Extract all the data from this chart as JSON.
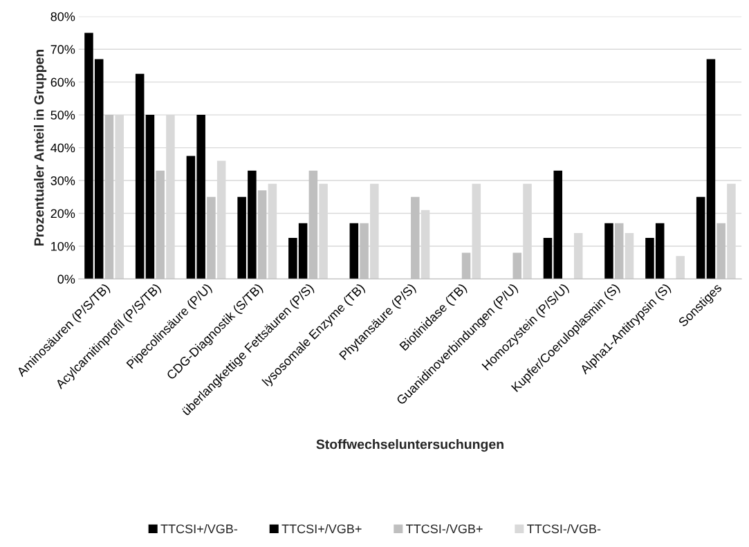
{
  "chart_data": {
    "type": "bar",
    "xlabel": "Stoffwechseluntersuchungen",
    "ylabel": "Prozentualer Anteil in Gruppen",
    "categories": [
      "Aminosäuren (P/S/TB)",
      "Acylcarnitinprofil (P/S/TB)",
      "Pipecolinsäure (P/U)",
      "CDG-Diagnostik (S/TB)",
      "überlangkettige Fettsäuren (P/S)",
      "lysosomale Enzyme (TB)",
      "Phytansäure (P/S)",
      "Biotinidase (TB)",
      "Guanidinoverbindungen (P/U)",
      "Homozystein (P/S/U)",
      "Kupfer/Coeruloplasmin (S)",
      "Alpha1-Antitrypsin (S)",
      "Sonstiges"
    ],
    "series": [
      {
        "name": "TTCSI+/VGB-",
        "color": "#000000",
        "values": [
          75,
          62.5,
          37.5,
          25,
          12.5,
          0,
          0,
          0,
          0,
          12.5,
          0,
          12.5,
          25
        ]
      },
      {
        "name": "TTCSI+/VGB+",
        "color": "#000000",
        "values": [
          67,
          50,
          50,
          33,
          17,
          17,
          0,
          0,
          0,
          33,
          17,
          17,
          67
        ]
      },
      {
        "name": "TTCSI-/VGB+",
        "color": "#bfbfbf",
        "values": [
          50,
          33,
          25,
          27,
          33,
          17,
          25,
          8,
          8,
          0,
          17,
          0,
          17
        ]
      },
      {
        "name": "TTCSI-/VGB-",
        "color": "#d9d9d9",
        "values": [
          50,
          50,
          36,
          29,
          29,
          29,
          21,
          29,
          29,
          14,
          14,
          7,
          29
        ]
      }
    ],
    "ylim": [
      0,
      80
    ],
    "yticks": [
      {
        "value": 0,
        "label": "0%"
      },
      {
        "value": 10,
        "label": "10%"
      },
      {
        "value": 20,
        "label": "20%"
      },
      {
        "value": 30,
        "label": "30%"
      },
      {
        "value": 40,
        "label": "40%"
      },
      {
        "value": 50,
        "label": "50%"
      },
      {
        "value": 60,
        "label": "60%"
      },
      {
        "value": 70,
        "label": "70%"
      },
      {
        "value": 80,
        "label": "80%"
      }
    ],
    "grid": "y",
    "legend": "bottom"
  }
}
